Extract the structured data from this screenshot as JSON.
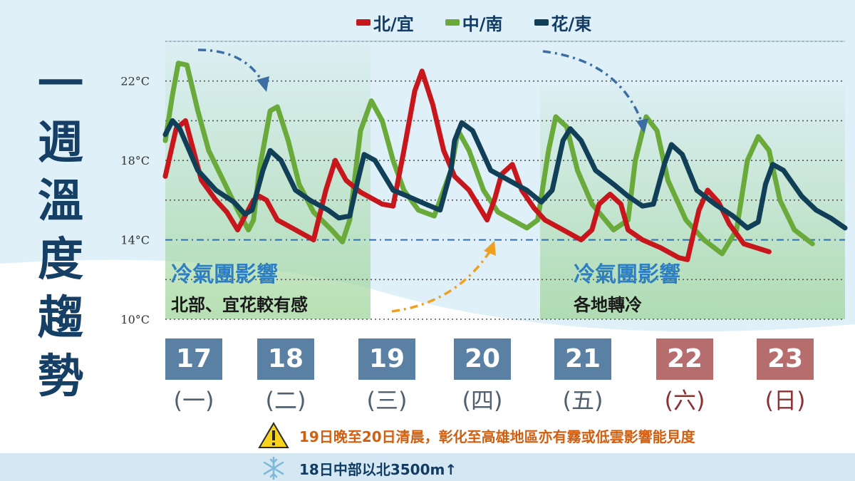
{
  "title_chars": [
    "一",
    "週",
    "溫",
    "度",
    "趨",
    "勢"
  ],
  "legend": [
    {
      "label": "北/宜",
      "color": "#c8161d"
    },
    {
      "label": "中/南",
      "color": "#6aaa3a"
    },
    {
      "label": "花/東",
      "color": "#103f57"
    }
  ],
  "cold_air": [
    {
      "title": "冷氣團影響",
      "subtitle": "北部、宜花較有感"
    },
    {
      "title": "冷氣團影響",
      "subtitle": "各地轉冷"
    }
  ],
  "days": [
    {
      "num": "17",
      "weekday": "(一)",
      "weekend": false
    },
    {
      "num": "18",
      "weekday": "(二)",
      "weekend": false
    },
    {
      "num": "19",
      "weekday": "(三)",
      "weekend": false
    },
    {
      "num": "20",
      "weekday": "(四)",
      "weekend": false
    },
    {
      "num": "21",
      "weekday": "(五)",
      "weekend": false
    },
    {
      "num": "22",
      "weekday": "(六)",
      "weekend": true
    },
    {
      "num": "23",
      "weekday": "(日)",
      "weekend": true
    }
  ],
  "notes": {
    "fog": "19日晚至20日清晨，彰化至高雄地區亦有霧或低雲影響能見度",
    "snow": "18日中部以北3500m↑",
    "warning_icon": "warning-triangle-icon",
    "snow_icon": "snowflake-icon"
  },
  "colors": {
    "title": "#163f66",
    "weekday": "#5a80a3",
    "weekend": "#b56d6d",
    "weekday_text": "#51606e",
    "weekend_text": "#8b3232",
    "note_fog": "#d25f10",
    "note_snow": "#123c63"
  },
  "chart_data": {
    "type": "line",
    "ylim": [
      10,
      24
    ],
    "yticks": [
      10,
      14,
      18,
      22
    ],
    "ytick_labels": [
      "10°C",
      "14°C",
      "18°C",
      "22°C"
    ],
    "reference_line": 14,
    "grid": true,
    "legend_position": "top-center",
    "series": [
      {
        "name": "北/宜",
        "color": "#c8161d",
        "points": [
          [
            0,
            17.2
          ],
          [
            0.15,
            19.6
          ],
          [
            0.28,
            20.0
          ],
          [
            0.5,
            17.0
          ],
          [
            0.7,
            16.0
          ],
          [
            0.85,
            15.4
          ],
          [
            1.0,
            14.5
          ],
          [
            1.22,
            16.0
          ],
          [
            1.3,
            16.2
          ],
          [
            1.4,
            16.0
          ],
          [
            1.55,
            15.0
          ],
          [
            1.8,
            14.5
          ],
          [
            2.05,
            14.0
          ],
          [
            2.22,
            16.5
          ],
          [
            2.35,
            18.0
          ],
          [
            2.5,
            17.0
          ],
          [
            2.7,
            16.4
          ],
          [
            3.0,
            15.8
          ],
          [
            3.15,
            15.7
          ],
          [
            3.3,
            18.5
          ],
          [
            3.45,
            21.5
          ],
          [
            3.55,
            22.5
          ],
          [
            3.7,
            20.8
          ],
          [
            3.85,
            18.5
          ],
          [
            4.0,
            17.2
          ],
          [
            4.2,
            16.5
          ],
          [
            4.45,
            15.0
          ],
          [
            4.55,
            16.0
          ],
          [
            4.65,
            17.3
          ],
          [
            4.8,
            17.8
          ],
          [
            4.93,
            16.5
          ],
          [
            5.1,
            15.6
          ],
          [
            5.25,
            15.0
          ],
          [
            5.5,
            14.5
          ],
          [
            5.75,
            14.0
          ],
          [
            5.9,
            14.5
          ],
          [
            6.0,
            15.8
          ],
          [
            6.15,
            16.3
          ],
          [
            6.3,
            15.8
          ],
          [
            6.4,
            14.5
          ],
          [
            6.6,
            14.0
          ],
          [
            6.85,
            13.6
          ],
          [
            7.1,
            13.1
          ],
          [
            7.22,
            13.0
          ],
          [
            7.38,
            15.5
          ],
          [
            7.5,
            16.5
          ],
          [
            7.65,
            15.9
          ],
          [
            7.8,
            14.8
          ],
          [
            8.0,
            13.8
          ],
          [
            8.35,
            13.4
          ]
        ]
      },
      {
        "name": "中/南",
        "color": "#6aaa3a",
        "points": [
          [
            0,
            19.0
          ],
          [
            0.1,
            21.3
          ],
          [
            0.18,
            22.9
          ],
          [
            0.3,
            22.8
          ],
          [
            0.45,
            20.5
          ],
          [
            0.6,
            18.5
          ],
          [
            0.8,
            17.0
          ],
          [
            1.0,
            15.5
          ],
          [
            1.15,
            14.5
          ],
          [
            1.22,
            15.0
          ],
          [
            1.3,
            17.5
          ],
          [
            1.45,
            20.5
          ],
          [
            1.55,
            20.7
          ],
          [
            1.7,
            19.0
          ],
          [
            1.85,
            16.8
          ],
          [
            2.05,
            15.4
          ],
          [
            2.3,
            14.5
          ],
          [
            2.45,
            13.9
          ],
          [
            2.55,
            15.0
          ],
          [
            2.7,
            19.5
          ],
          [
            2.85,
            21.0
          ],
          [
            3.0,
            20.0
          ],
          [
            3.15,
            18.0
          ],
          [
            3.3,
            16.5
          ],
          [
            3.5,
            15.5
          ],
          [
            3.72,
            15.2
          ],
          [
            3.95,
            17.5
          ],
          [
            4.05,
            19.5
          ],
          [
            4.2,
            18.5
          ],
          [
            4.4,
            16.5
          ],
          [
            4.6,
            15.4
          ],
          [
            4.8,
            15.0
          ],
          [
            5.0,
            14.6
          ],
          [
            5.15,
            15.0
          ],
          [
            5.3,
            18.5
          ],
          [
            5.4,
            20.2
          ],
          [
            5.55,
            19.7
          ],
          [
            5.7,
            17.5
          ],
          [
            5.9,
            15.8
          ],
          [
            6.2,
            14.5
          ],
          [
            6.4,
            15.0
          ],
          [
            6.5,
            18.0
          ],
          [
            6.65,
            20.2
          ],
          [
            6.8,
            19.5
          ],
          [
            6.95,
            17.0
          ],
          [
            7.2,
            15.0
          ],
          [
            7.45,
            14.0
          ],
          [
            7.7,
            13.3
          ],
          [
            7.9,
            14.5
          ],
          [
            8.05,
            18.0
          ],
          [
            8.2,
            19.2
          ],
          [
            8.35,
            18.5
          ],
          [
            8.5,
            16.0
          ],
          [
            8.7,
            14.5
          ],
          [
            8.95,
            13.8
          ]
        ]
      },
      {
        "name": "花/東",
        "color": "#103f57",
        "points": [
          [
            0,
            19.3
          ],
          [
            0.1,
            20.0
          ],
          [
            0.2,
            19.6
          ],
          [
            0.45,
            17.5
          ],
          [
            0.7,
            16.5
          ],
          [
            0.95,
            15.9
          ],
          [
            1.1,
            15.3
          ],
          [
            1.2,
            15.5
          ],
          [
            1.35,
            17.5
          ],
          [
            1.45,
            18.5
          ],
          [
            1.6,
            18.0
          ],
          [
            1.8,
            16.5
          ],
          [
            2.0,
            16.0
          ],
          [
            2.25,
            15.5
          ],
          [
            2.4,
            15.1
          ],
          [
            2.55,
            15.2
          ],
          [
            2.65,
            16.8
          ],
          [
            2.75,
            18.3
          ],
          [
            2.9,
            18.0
          ],
          [
            3.15,
            16.5
          ],
          [
            3.35,
            16.2
          ],
          [
            3.6,
            15.8
          ],
          [
            3.8,
            15.5
          ],
          [
            3.95,
            17.5
          ],
          [
            4.0,
            19.0
          ],
          [
            4.1,
            19.9
          ],
          [
            4.25,
            19.5
          ],
          [
            4.5,
            17.5
          ],
          [
            4.75,
            17.0
          ],
          [
            5.0,
            16.5
          ],
          [
            5.2,
            15.9
          ],
          [
            5.35,
            16.5
          ],
          [
            5.5,
            19.0
          ],
          [
            5.6,
            19.6
          ],
          [
            5.75,
            19.0
          ],
          [
            5.95,
            17.5
          ],
          [
            6.2,
            16.8
          ],
          [
            6.4,
            16.2
          ],
          [
            6.6,
            15.7
          ],
          [
            6.75,
            15.8
          ],
          [
            6.9,
            17.8
          ],
          [
            7.0,
            18.8
          ],
          [
            7.15,
            18.3
          ],
          [
            7.35,
            16.5
          ],
          [
            7.6,
            15.8
          ],
          [
            7.85,
            15.2
          ],
          [
            8.05,
            14.6
          ],
          [
            8.2,
            14.9
          ],
          [
            8.3,
            16.8
          ],
          [
            8.4,
            17.8
          ],
          [
            8.55,
            17.5
          ],
          [
            8.8,
            16.2
          ],
          [
            9.0,
            15.5
          ],
          [
            9.2,
            15.1
          ],
          [
            9.4,
            14.6
          ]
        ]
      }
    ]
  }
}
